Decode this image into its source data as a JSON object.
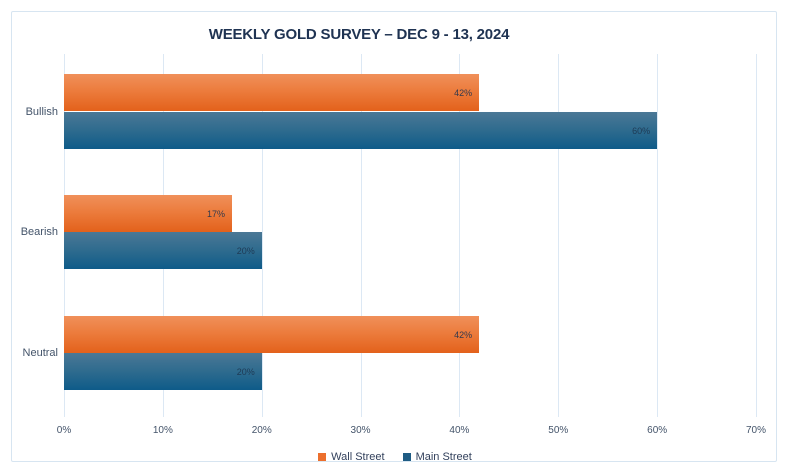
{
  "chart_data": {
    "type": "bar",
    "orientation": "horizontal",
    "title": "WEEKLY GOLD SURVEY – DEC 9 - 13, 2024",
    "categories": [
      "Bullish",
      "Bearish",
      "Neutral"
    ],
    "series": [
      {
        "name": "Wall Street",
        "color": "#EC6F2D",
        "values": [
          42,
          17,
          42
        ],
        "labels": [
          "42%",
          "17%",
          "42%"
        ]
      },
      {
        "name": "Main Street",
        "color": "#1F5C84",
        "values": [
          60,
          20,
          20
        ],
        "labels": [
          "60%",
          "20%",
          "20%"
        ]
      }
    ],
    "xlim": [
      0,
      70
    ],
    "x_ticks": [
      "0%",
      "10%",
      "20%",
      "30%",
      "40%",
      "50%",
      "60%",
      "70%"
    ],
    "grid": true,
    "legend_position": "bottom",
    "colors": {
      "title_text": "#1F3352",
      "axis_text": "#44546A",
      "gridline": "#DCE8F4",
      "frame_border": "#D7E5F1"
    }
  }
}
